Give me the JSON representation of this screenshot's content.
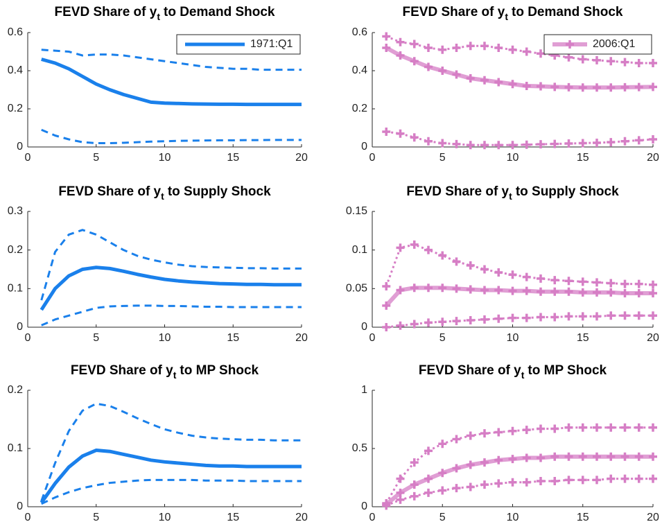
{
  "chart_data": [
    {
      "type": "line",
      "title": [
        "FEVD Share of y",
        "t",
        "to Demand Shock"
      ],
      "legend": "upper right",
      "x": [
        1,
        2,
        3,
        4,
        5,
        6,
        7,
        8,
        9,
        10,
        11,
        12,
        13,
        14,
        15,
        16,
        17,
        18,
        19,
        20
      ],
      "xlim": [
        0,
        20
      ],
      "xticks": [
        0,
        5,
        10,
        15,
        20
      ],
      "ylim": [
        0,
        0.6
      ],
      "yticks": [
        0,
        0.2,
        0.4,
        0.6
      ],
      "series": [
        {
          "name": "1971:Q1",
          "color": "#1a80eb",
          "line_style": "solid",
          "values": [
            0.46,
            0.44,
            0.41,
            0.37,
            0.33,
            0.3,
            0.275,
            0.255,
            0.235,
            0.23,
            0.228,
            0.226,
            0.225,
            0.224,
            0.224,
            0.223,
            0.223,
            0.223,
            0.223,
            0.223
          ]
        },
        {
          "color": "#1a80eb",
          "line_style": "dashed",
          "values": [
            0.51,
            0.505,
            0.5,
            0.48,
            0.485,
            0.485,
            0.48,
            0.47,
            0.46,
            0.45,
            0.44,
            0.43,
            0.42,
            0.415,
            0.41,
            0.41,
            0.405,
            0.405,
            0.405,
            0.405
          ]
        },
        {
          "color": "#1a80eb",
          "line_style": "dashed",
          "values": [
            0.09,
            0.06,
            0.04,
            0.025,
            0.02,
            0.02,
            0.022,
            0.025,
            0.028,
            0.03,
            0.032,
            0.033,
            0.034,
            0.035,
            0.035,
            0.036,
            0.036,
            0.037,
            0.037,
            0.037
          ]
        }
      ]
    },
    {
      "type": "line",
      "title": [
        "FEVD Share of y",
        "t",
        "to Demand Shock"
      ],
      "legend": "upper right",
      "x": [
        1,
        2,
        3,
        4,
        5,
        6,
        7,
        8,
        9,
        10,
        11,
        12,
        13,
        14,
        15,
        16,
        17,
        18,
        19,
        20
      ],
      "xlim": [
        0,
        20
      ],
      "xticks": [
        0,
        5,
        10,
        15,
        20
      ],
      "ylim": [
        0,
        0.6
      ],
      "yticks": [
        0,
        0.2,
        0.4,
        0.6
      ],
      "series": [
        {
          "name": "2006:Q1",
          "color": "#d67ec5",
          "line_style": "solid",
          "marker": "+",
          "values": [
            0.52,
            0.48,
            0.45,
            0.42,
            0.4,
            0.38,
            0.36,
            0.35,
            0.34,
            0.33,
            0.32,
            0.318,
            0.315,
            0.313,
            0.312,
            0.312,
            0.312,
            0.313,
            0.314,
            0.315
          ]
        },
        {
          "color": "#d67ec5",
          "line_style": "dotted",
          "marker": "+",
          "values": [
            0.58,
            0.55,
            0.54,
            0.52,
            0.51,
            0.52,
            0.53,
            0.53,
            0.52,
            0.51,
            0.5,
            0.49,
            0.48,
            0.47,
            0.46,
            0.455,
            0.45,
            0.445,
            0.44,
            0.44
          ]
        },
        {
          "color": "#d67ec5",
          "line_style": "dotted",
          "marker": "+",
          "values": [
            0.08,
            0.07,
            0.05,
            0.03,
            0.02,
            0.015,
            0.01,
            0.01,
            0.01,
            0.01,
            0.012,
            0.014,
            0.016,
            0.018,
            0.02,
            0.022,
            0.025,
            0.03,
            0.035,
            0.04
          ]
        }
      ]
    },
    {
      "type": "line",
      "title": [
        "FEVD Share of y",
        "t",
        "to Supply Shock"
      ],
      "x": [
        1,
        2,
        3,
        4,
        5,
        6,
        7,
        8,
        9,
        10,
        11,
        12,
        13,
        14,
        15,
        16,
        17,
        18,
        19,
        20
      ],
      "xlim": [
        0,
        20
      ],
      "xticks": [
        0,
        5,
        10,
        15,
        20
      ],
      "ylim": [
        0,
        0.3
      ],
      "yticks": [
        0,
        0.1,
        0.2,
        0.3
      ],
      "series": [
        {
          "color": "#1a80eb",
          "line_style": "solid",
          "values": [
            0.045,
            0.1,
            0.133,
            0.15,
            0.155,
            0.152,
            0.145,
            0.137,
            0.13,
            0.124,
            0.12,
            0.117,
            0.115,
            0.113,
            0.112,
            0.111,
            0.111,
            0.11,
            0.11,
            0.11
          ]
        },
        {
          "color": "#1a80eb",
          "line_style": "dashed",
          "values": [
            0.07,
            0.195,
            0.24,
            0.252,
            0.24,
            0.22,
            0.2,
            0.185,
            0.175,
            0.168,
            0.162,
            0.158,
            0.156,
            0.155,
            0.154,
            0.153,
            0.153,
            0.152,
            0.152,
            0.152
          ]
        },
        {
          "color": "#1a80eb",
          "line_style": "dashed",
          "values": [
            0.005,
            0.02,
            0.03,
            0.04,
            0.05,
            0.054,
            0.055,
            0.056,
            0.056,
            0.055,
            0.055,
            0.054,
            0.053,
            0.053,
            0.052,
            0.052,
            0.052,
            0.052,
            0.052,
            0.052
          ]
        }
      ]
    },
    {
      "type": "line",
      "title": [
        "FEVD Share of y",
        "t",
        "to Supply Shock"
      ],
      "x": [
        1,
        2,
        3,
        4,
        5,
        6,
        7,
        8,
        9,
        10,
        11,
        12,
        13,
        14,
        15,
        16,
        17,
        18,
        19,
        20
      ],
      "xlim": [
        0,
        20
      ],
      "xticks": [
        0,
        5,
        10,
        15,
        20
      ],
      "ylim": [
        0,
        0.15
      ],
      "yticks": [
        0,
        0.05,
        0.1,
        0.15
      ],
      "series": [
        {
          "color": "#d67ec5",
          "line_style": "solid",
          "marker": "+",
          "values": [
            0.028,
            0.048,
            0.051,
            0.051,
            0.051,
            0.05,
            0.049,
            0.048,
            0.048,
            0.047,
            0.047,
            0.046,
            0.046,
            0.046,
            0.045,
            0.045,
            0.045,
            0.044,
            0.044,
            0.044
          ]
        },
        {
          "color": "#d67ec5",
          "line_style": "dotted",
          "marker": "+",
          "values": [
            0.053,
            0.103,
            0.107,
            0.1,
            0.093,
            0.085,
            0.08,
            0.075,
            0.071,
            0.068,
            0.065,
            0.063,
            0.061,
            0.06,
            0.059,
            0.058,
            0.057,
            0.056,
            0.056,
            0.055
          ]
        },
        {
          "color": "#d67ec5",
          "line_style": "dotted",
          "marker": "+",
          "values": [
            0,
            0.002,
            0.004,
            0.006,
            0.007,
            0.008,
            0.009,
            0.01,
            0.011,
            0.012,
            0.012,
            0.013,
            0.013,
            0.014,
            0.014,
            0.014,
            0.015,
            0.015,
            0.015,
            0.015
          ]
        }
      ]
    },
    {
      "type": "line",
      "title": [
        "FEVD Share of y",
        "t",
        "to MP Shock"
      ],
      "x": [
        1,
        2,
        3,
        4,
        5,
        6,
        7,
        8,
        9,
        10,
        11,
        12,
        13,
        14,
        15,
        16,
        17,
        18,
        19,
        20
      ],
      "xlim": [
        0,
        20
      ],
      "xticks": [
        0,
        5,
        10,
        15,
        20
      ],
      "ylim": [
        0,
        0.2
      ],
      "yticks": [
        0,
        0.1,
        0.2
      ],
      "series": [
        {
          "color": "#1a80eb",
          "line_style": "solid",
          "values": [
            0.007,
            0.04,
            0.068,
            0.087,
            0.097,
            0.095,
            0.09,
            0.085,
            0.08,
            0.077,
            0.075,
            0.073,
            0.071,
            0.07,
            0.07,
            0.069,
            0.069,
            0.069,
            0.069,
            0.069
          ]
        },
        {
          "color": "#1a80eb",
          "line_style": "dashed",
          "values": [
            0.01,
            0.075,
            0.13,
            0.165,
            0.177,
            0.173,
            0.163,
            0.152,
            0.142,
            0.133,
            0.127,
            0.122,
            0.119,
            0.117,
            0.116,
            0.115,
            0.115,
            0.114,
            0.114,
            0.114
          ]
        },
        {
          "color": "#1a80eb",
          "line_style": "dashed",
          "values": [
            0.005,
            0.016,
            0.025,
            0.032,
            0.037,
            0.041,
            0.043,
            0.045,
            0.046,
            0.046,
            0.046,
            0.046,
            0.045,
            0.045,
            0.045,
            0.044,
            0.044,
            0.044,
            0.044,
            0.044
          ]
        }
      ]
    },
    {
      "type": "line",
      "title": [
        "FEVD Share of y",
        "t",
        "to MP Shock"
      ],
      "x": [
        1,
        2,
        3,
        4,
        5,
        6,
        7,
        8,
        9,
        10,
        11,
        12,
        13,
        14,
        15,
        16,
        17,
        18,
        19,
        20
      ],
      "xlim": [
        0,
        20
      ],
      "xticks": [
        0,
        5,
        10,
        15,
        20
      ],
      "ylim": [
        0,
        1
      ],
      "yticks": [
        0,
        0.5,
        1
      ],
      "series": [
        {
          "color": "#d67ec5",
          "line_style": "solid",
          "marker": "+",
          "values": [
            0.02,
            0.12,
            0.19,
            0.24,
            0.29,
            0.33,
            0.36,
            0.38,
            0.4,
            0.41,
            0.42,
            0.42,
            0.43,
            0.43,
            0.43,
            0.43,
            0.43,
            0.43,
            0.43,
            0.43
          ]
        },
        {
          "color": "#d67ec5",
          "line_style": "dotted",
          "marker": "+",
          "values": [
            0.03,
            0.24,
            0.38,
            0.48,
            0.54,
            0.58,
            0.61,
            0.63,
            0.64,
            0.65,
            0.66,
            0.67,
            0.67,
            0.68,
            0.68,
            0.68,
            0.68,
            0.68,
            0.68,
            0.68
          ]
        },
        {
          "color": "#d67ec5",
          "line_style": "dotted",
          "marker": "+",
          "values": [
            0.01,
            0.06,
            0.09,
            0.12,
            0.14,
            0.16,
            0.17,
            0.19,
            0.2,
            0.21,
            0.21,
            0.22,
            0.22,
            0.23,
            0.23,
            0.23,
            0.24,
            0.24,
            0.24,
            0.24
          ]
        }
      ]
    }
  ]
}
